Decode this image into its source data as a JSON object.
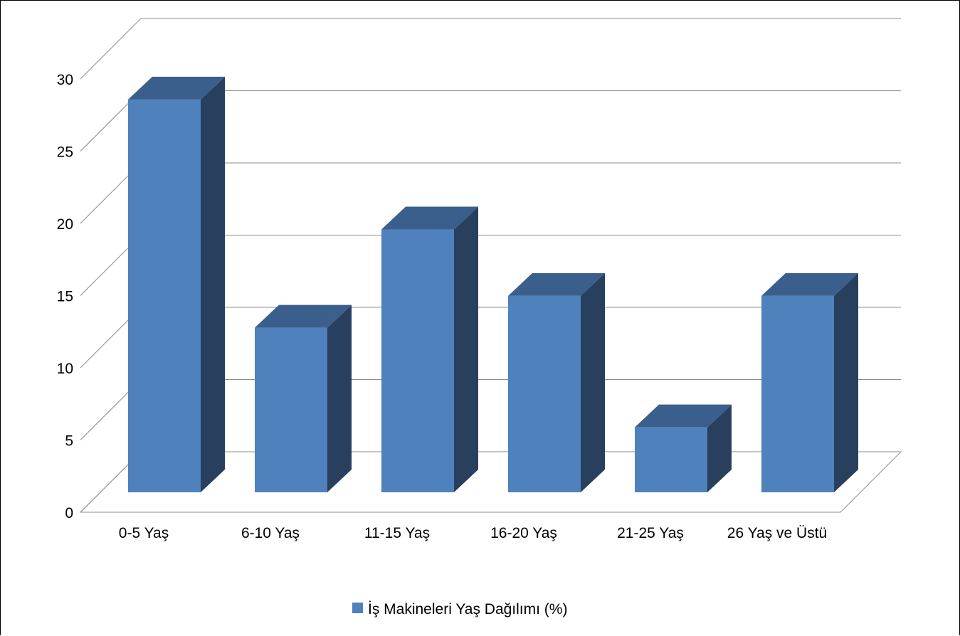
{
  "chart_data": {
    "type": "bar",
    "style": "3d-column",
    "categories": [
      "0-5 Yaş",
      "6-10 Yaş",
      "11-15 Yaş",
      "16-20 Yaş",
      "21-25 Yaş",
      "26 Yaş ve Üstü"
    ],
    "series": [
      {
        "name": "İş Makineleri Yaş Dağılımı (%)",
        "values": [
          27.2,
          11.4,
          18.2,
          13.6,
          4.5,
          13.6
        ]
      }
    ],
    "yticks": [
      "0",
      "5",
      "10",
      "15",
      "20",
      "25",
      "30"
    ],
    "ylim": [
      0,
      30
    ],
    "grid": true,
    "legend": "bottom",
    "colors": {
      "front": "#4f81bd",
      "top": "#3b5f8c",
      "side": "#283f5e",
      "grid": "#8c8c8c"
    }
  }
}
